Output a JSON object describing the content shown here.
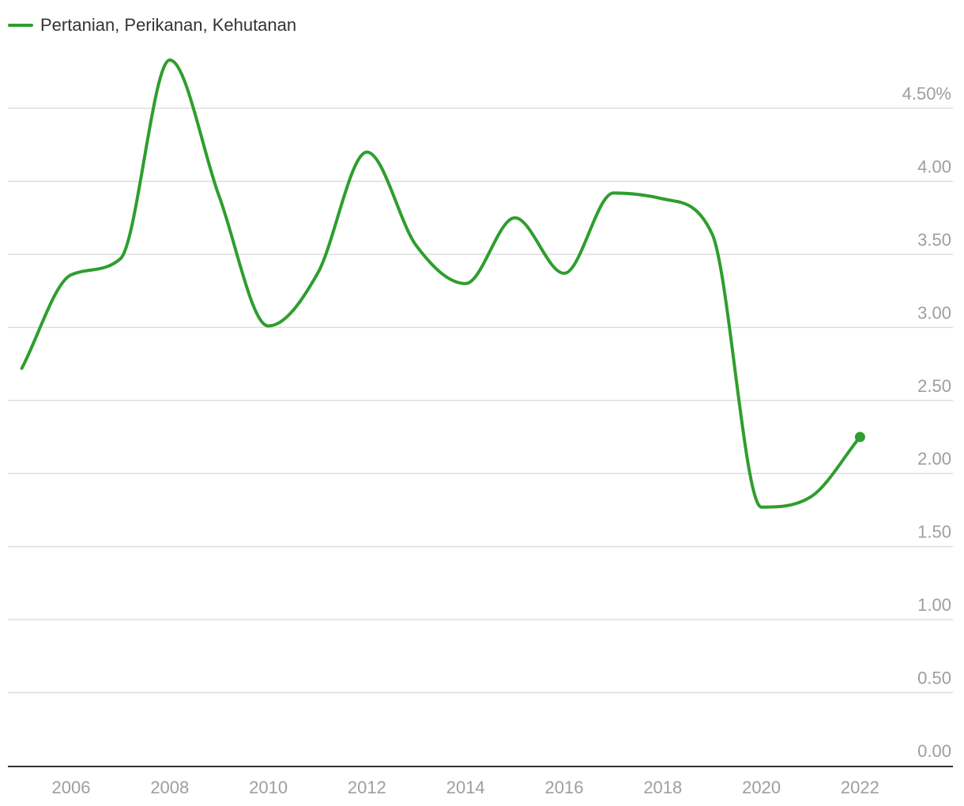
{
  "legend": {
    "label": "Pertanian, Perikanan, Kehutanan"
  },
  "colors": {
    "series": "#2e9e2e",
    "grid": "#dddddd",
    "axis": "#333333",
    "tick_text": "#9e9e9e"
  },
  "chart_data": {
    "type": "line",
    "title": "",
    "xlabel": "",
    "ylabel": "",
    "ylim": [
      0,
      5
    ],
    "y_ticks": [
      {
        "value": 0.0,
        "label": "0.00"
      },
      {
        "value": 0.5,
        "label": "0.50"
      },
      {
        "value": 1.0,
        "label": "1.00"
      },
      {
        "value": 1.5,
        "label": "1.50"
      },
      {
        "value": 2.0,
        "label": "2.00"
      },
      {
        "value": 2.5,
        "label": "2.50"
      },
      {
        "value": 3.0,
        "label": "3.00"
      },
      {
        "value": 3.5,
        "label": "3.50"
      },
      {
        "value": 4.0,
        "label": "4.00"
      },
      {
        "value": 4.5,
        "label": "4.50%"
      }
    ],
    "x_ticks": [
      2006,
      2008,
      2010,
      2012,
      2014,
      2016,
      2018,
      2020,
      2022
    ],
    "x_tick_labels": [
      "2006",
      "2008",
      "2010",
      "2012",
      "2014",
      "2016",
      "2018",
      "2020",
      "2022"
    ],
    "legend_position": "top-left",
    "grid": true,
    "series": [
      {
        "name": "Pertanian, Perikanan, Kehutanan",
        "x": [
          2005,
          2006,
          2007,
          2008,
          2009,
          2010,
          2011,
          2012,
          2013,
          2014,
          2015,
          2016,
          2017,
          2018,
          2019,
          2020,
          2021,
          2022
        ],
        "y": [
          2.72,
          3.36,
          3.47,
          4.83,
          3.9,
          3.01,
          3.37,
          4.2,
          3.56,
          3.3,
          3.75,
          3.37,
          3.92,
          3.88,
          3.64,
          1.77,
          1.84,
          2.25
        ]
      }
    ]
  }
}
